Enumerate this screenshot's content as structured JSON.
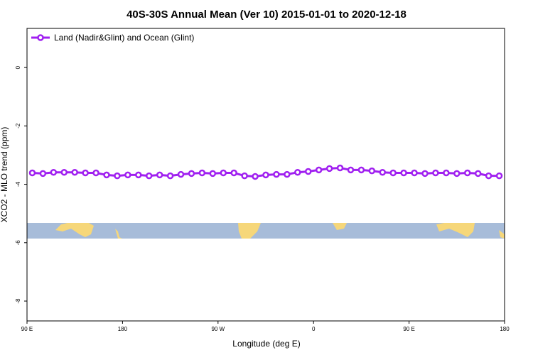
{
  "chart_data": {
    "type": "line",
    "title": "40S-30S Annual Mean (Ver 10)   2015-01-01 to 2020-12-18",
    "x_label": "Longitude (deg E)",
    "y_label": "XCO2 - MLO trend (ppm)",
    "x": [
      95,
      105,
      115,
      125,
      135,
      145,
      155,
      165,
      175,
      185,
      195,
      205,
      215,
      225,
      235,
      245,
      255,
      265,
      275,
      285,
      295,
      305,
      315,
      325,
      335,
      345,
      355,
      365,
      375,
      385,
      395,
      405,
      415,
      425,
      435,
      445,
      455,
      465,
      475,
      485,
      495,
      505,
      515,
      525,
      535
    ],
    "series": [
      {
        "name": "Land (Nadir&Glint) and Ocean (Glint)",
        "color": "#a020f0",
        "values": [
          -3.61,
          -3.63,
          -3.59,
          -3.59,
          -3.59,
          -3.61,
          -3.61,
          -3.68,
          -3.71,
          -3.68,
          -3.68,
          -3.71,
          -3.68,
          -3.71,
          -3.66,
          -3.63,
          -3.61,
          -3.63,
          -3.61,
          -3.61,
          -3.71,
          -3.73,
          -3.68,
          -3.66,
          -3.66,
          -3.59,
          -3.56,
          -3.51,
          -3.46,
          -3.44,
          -3.51,
          -3.51,
          -3.54,
          -3.59,
          -3.61,
          -3.61,
          -3.61,
          -3.63,
          -3.61,
          -3.61,
          -3.63,
          -3.61,
          -3.63,
          -3.71,
          -3.71
        ]
      }
    ],
    "xlim": [
      90,
      540
    ],
    "xticks": [
      {
        "value": 90,
        "label": "90 E"
      },
      180,
      {
        "value": 270,
        "label": "90 W"
      },
      {
        "value": 360,
        "label": "0"
      },
      {
        "value": 450,
        "label": "90 E"
      },
      {
        "value": 540,
        "label": "180"
      }
    ],
    "ylim": [
      -8.68,
      1.34
    ],
    "yticks": [
      0,
      -2,
      -4,
      -6,
      -8
    ],
    "legend": "top-left"
  }
}
